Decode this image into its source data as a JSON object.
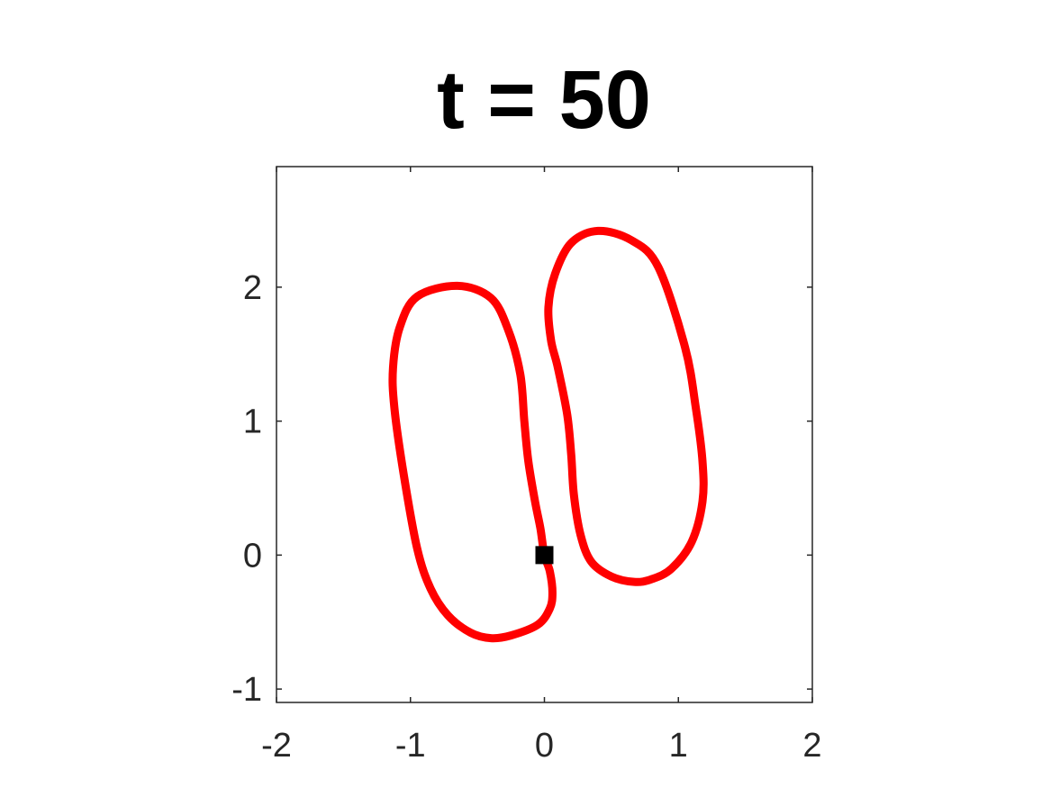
{
  "chart_data": {
    "type": "line",
    "title": "t = 50",
    "xlabel": "",
    "ylabel": "",
    "xlim": [
      -2,
      2
    ],
    "ylim": [
      -1.1,
      2.9
    ],
    "xticks": [
      -2,
      -1,
      0,
      1,
      2
    ],
    "yticks": [
      -1,
      0,
      1,
      2
    ],
    "xtick_labels": [
      "-2",
      "-1",
      "0",
      "1",
      "2"
    ],
    "ytick_labels": [
      "-1",
      "0",
      "1",
      "2"
    ],
    "grid": false,
    "series": [
      {
        "color": "#ff0000",
        "closed": true,
        "points": [
          [
            0.0,
            0.0
          ],
          [
            0.04,
            -0.12
          ],
          [
            0.06,
            -0.28
          ],
          [
            0.04,
            -0.4
          ],
          [
            -0.05,
            -0.52
          ],
          [
            -0.25,
            -0.6
          ],
          [
            -0.4,
            -0.62
          ],
          [
            -0.55,
            -0.58
          ],
          [
            -0.72,
            -0.45
          ],
          [
            -0.85,
            -0.25
          ],
          [
            -0.95,
            0.05
          ],
          [
            -1.05,
            0.6
          ],
          [
            -1.12,
            1.1
          ],
          [
            -1.13,
            1.4
          ],
          [
            -1.08,
            1.7
          ],
          [
            -0.95,
            1.93
          ],
          [
            -0.65,
            2.01
          ],
          [
            -0.4,
            1.92
          ],
          [
            -0.27,
            1.68
          ],
          [
            -0.18,
            1.35
          ],
          [
            -0.15,
            1.0
          ],
          [
            -0.12,
            0.7
          ],
          [
            -0.07,
            0.4
          ],
          [
            -0.03,
            0.2
          ]
        ]
      },
      {
        "color": "#ff0000",
        "closed": true,
        "points": [
          [
            0.4,
            2.42
          ],
          [
            0.65,
            2.35
          ],
          [
            0.85,
            2.15
          ],
          [
            1.05,
            1.55
          ],
          [
            1.13,
            1.1
          ],
          [
            1.18,
            0.7
          ],
          [
            1.18,
            0.4
          ],
          [
            1.1,
            0.1
          ],
          [
            0.95,
            -0.1
          ],
          [
            0.8,
            -0.18
          ],
          [
            0.67,
            -0.2
          ],
          [
            0.5,
            -0.16
          ],
          [
            0.35,
            -0.05
          ],
          [
            0.27,
            0.15
          ],
          [
            0.22,
            0.45
          ],
          [
            0.2,
            0.75
          ],
          [
            0.17,
            1.05
          ],
          [
            0.1,
            1.4
          ],
          [
            0.05,
            1.6
          ],
          [
            0.03,
            1.85
          ],
          [
            0.08,
            2.1
          ],
          [
            0.2,
            2.33
          ]
        ]
      },
      {
        "type": "marker",
        "shape": "square",
        "color": "#000000",
        "points": [
          [
            0.0,
            0.0
          ]
        ]
      }
    ]
  }
}
